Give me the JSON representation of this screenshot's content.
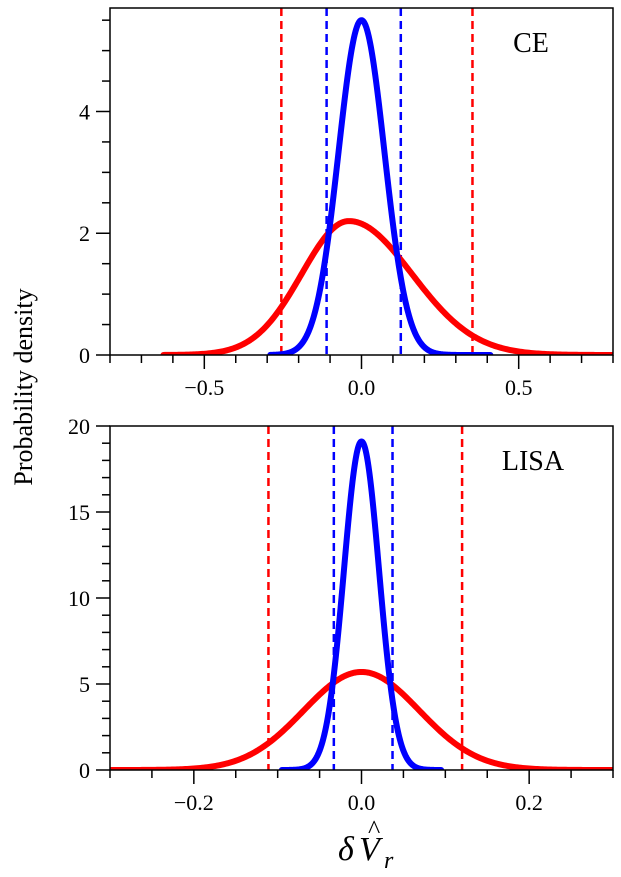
{
  "figure": {
    "ylabel": "Probability density",
    "xlabel": "δV̂",
    "xlabel_symbol": "δ",
    "xlabel_var": "V",
    "xlabel_hat": "^",
    "xlabel_sub": "r"
  },
  "colors": {
    "red": "#ff0000",
    "blue": "#0000ff",
    "axis": "#000000"
  },
  "chart_data": [
    {
      "type": "line",
      "panel_label": "CE",
      "xlim": [
        -0.8,
        0.8
      ],
      "ylim": [
        0,
        5.7
      ],
      "xticks": [
        -0.5,
        0.0,
        0.5
      ],
      "xtick_labels": [
        "−0.5",
        "0.0",
        "0.5"
      ],
      "xminor_step": 0.1,
      "yticks": [
        0,
        2,
        4
      ],
      "ytick_labels": [
        "0",
        "2",
        "4"
      ],
      "yminor_step": 0.5,
      "series": [
        {
          "name": "red",
          "color": "#ff0000",
          "x_range": [
            -0.63,
            0.8
          ],
          "mean": -0.04,
          "sigma_left": 0.15,
          "sigma_right": 0.2,
          "peak": 2.2
        },
        {
          "name": "blue",
          "color": "#0000ff",
          "x_range": [
            -0.29,
            0.41
          ],
          "mean": 0.0,
          "sigma_left": 0.073,
          "sigma_right": 0.073,
          "peak": 5.5
        }
      ],
      "vlines": [
        {
          "color": "#ff0000",
          "x": -0.255
        },
        {
          "color": "#ff0000",
          "x": 0.353
        },
        {
          "color": "#0000ff",
          "x": -0.111
        },
        {
          "color": "#0000ff",
          "x": 0.125
        }
      ]
    },
    {
      "type": "line",
      "panel_label": "LISA",
      "xlim": [
        -0.3,
        0.3
      ],
      "ylim": [
        0,
        20
      ],
      "xticks": [
        -0.2,
        0.0,
        0.2
      ],
      "xtick_labels": [
        "−0.2",
        "0.0",
        "0.2"
      ],
      "xminor_step": 0.05,
      "yticks": [
        0,
        5,
        10,
        15,
        20
      ],
      "ytick_labels": [
        "0",
        "5",
        "10",
        "15",
        "20"
      ],
      "yminor_step": 1,
      "series": [
        {
          "name": "red",
          "color": "#ff0000",
          "x_range": [
            -0.3,
            0.3
          ],
          "mean": 0.0,
          "sigma_left": 0.069,
          "sigma_right": 0.069,
          "peak": 5.7
        },
        {
          "name": "blue",
          "color": "#0000ff",
          "x_range": [
            -0.095,
            0.095
          ],
          "mean": 0.0,
          "sigma_left": 0.021,
          "sigma_right": 0.021,
          "peak": 19.1
        }
      ],
      "vlines": [
        {
          "color": "#ff0000",
          "x": -0.111
        },
        {
          "color": "#ff0000",
          "x": 0.12
        },
        {
          "color": "#0000ff",
          "x": -0.033
        },
        {
          "color": "#0000ff",
          "x": 0.037
        }
      ]
    }
  ]
}
